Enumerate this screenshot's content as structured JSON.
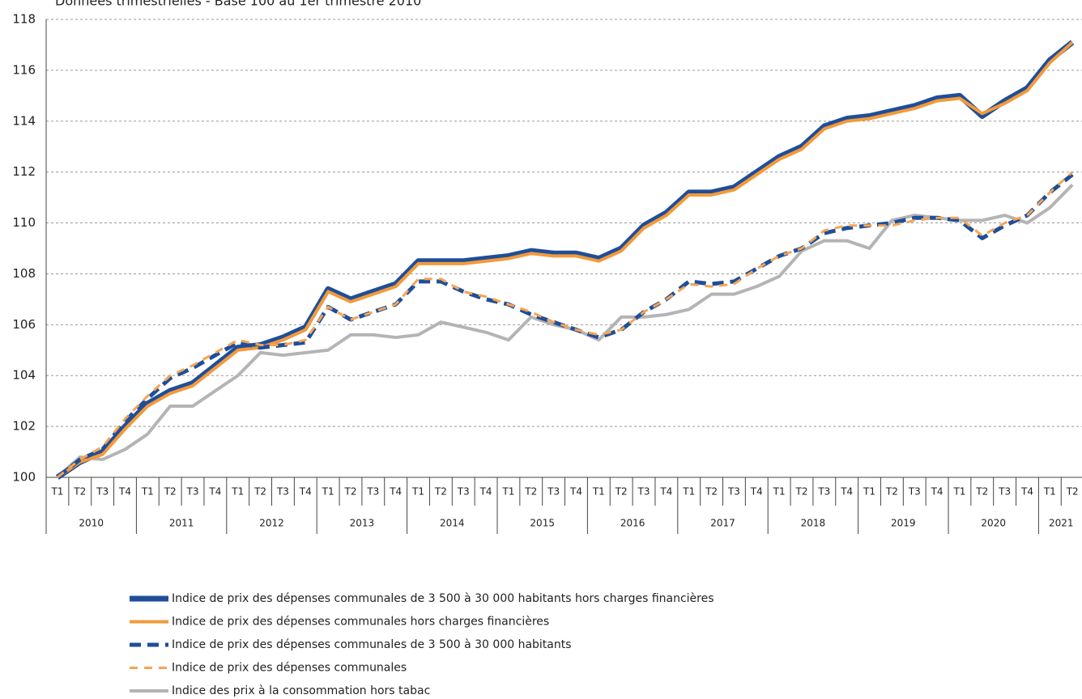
{
  "chart_data": {
    "type": "line",
    "title": "Données trimestrielles - Base 100 au 1er trimestre 2010",
    "categories": [
      "T1",
      "T2",
      "T3",
      "T4",
      "T1",
      "T2",
      "T3",
      "T4",
      "T1",
      "T2",
      "T3",
      "T4",
      "T1",
      "T2",
      "T3",
      "T4",
      "T1",
      "T2",
      "T3",
      "T4",
      "T1",
      "T2",
      "T3",
      "T4",
      "T1",
      "T2",
      "T3",
      "T4",
      "T1",
      "T2",
      "T3",
      "T4",
      "T1",
      "T2",
      "T3",
      "T4",
      "T1",
      "T2",
      "T3",
      "T4",
      "T1",
      "T2",
      "T3",
      "T4",
      "T1",
      "T2"
    ],
    "groups": [
      "2010",
      "2011",
      "2012",
      "2013",
      "2014",
      "2015",
      "2016",
      "2017",
      "2018",
      "2019",
      "2020",
      "2021"
    ],
    "ylim": [
      100,
      118
    ],
    "yticks": [
      100,
      102,
      104,
      106,
      108,
      110,
      112,
      114,
      116,
      118
    ],
    "grid": true,
    "legend": "bottom",
    "series": [
      {
        "name": "Indice de prix des dépenses communales de 3 500 à 30 000 habitants hors charges financières",
        "color": "#1f4e99",
        "style": "solid-thick",
        "values": [
          100.0,
          100.6,
          101.0,
          102.0,
          102.9,
          103.4,
          103.7,
          104.4,
          105.1,
          105.2,
          105.5,
          105.9,
          107.4,
          107.0,
          107.3,
          107.6,
          108.5,
          108.5,
          108.5,
          108.6,
          108.7,
          108.9,
          108.8,
          108.8,
          108.6,
          109.0,
          109.9,
          110.4,
          111.2,
          111.2,
          111.4,
          112.0,
          112.6,
          113.0,
          113.8,
          114.1,
          114.2,
          114.4,
          114.6,
          114.9,
          115.0,
          114.2,
          114.8,
          115.3,
          116.4,
          117.1
        ]
      },
      {
        "name": "Indice de prix des dépenses communales hors charges financières",
        "color": "#f39a3a",
        "style": "solid",
        "values": [
          100.0,
          100.6,
          100.9,
          101.9,
          102.8,
          103.3,
          103.6,
          104.3,
          105.0,
          105.1,
          105.4,
          105.8,
          107.3,
          106.9,
          107.2,
          107.5,
          108.4,
          108.4,
          108.4,
          108.5,
          108.6,
          108.8,
          108.7,
          108.7,
          108.5,
          108.9,
          109.8,
          110.3,
          111.1,
          111.1,
          111.3,
          111.9,
          112.5,
          112.9,
          113.7,
          114.0,
          114.1,
          114.3,
          114.5,
          114.8,
          114.9,
          114.3,
          114.7,
          115.2,
          116.3,
          117.1
        ]
      },
      {
        "name": "Indice de prix des dépenses communales de 3 500 à 30 000 habitants",
        "color": "#1f4e99",
        "style": "dashed-thick",
        "values": [
          100.0,
          100.7,
          101.1,
          102.2,
          103.1,
          103.9,
          104.3,
          104.8,
          105.3,
          105.1,
          105.2,
          105.3,
          106.7,
          106.2,
          106.5,
          106.8,
          107.7,
          107.7,
          107.3,
          107.0,
          106.8,
          106.4,
          106.1,
          105.8,
          105.5,
          105.8,
          106.5,
          107.0,
          107.7,
          107.6,
          107.7,
          108.2,
          108.7,
          109.0,
          109.6,
          109.8,
          109.9,
          110.0,
          110.2,
          110.2,
          110.1,
          109.4,
          109.9,
          110.3,
          111.2,
          111.9
        ]
      },
      {
        "name": "Indice de prix des dépenses communales",
        "color": "#f5a454",
        "style": "dashed",
        "values": [
          100.0,
          100.7,
          101.2,
          102.3,
          103.2,
          104.0,
          104.4,
          104.9,
          105.4,
          105.2,
          105.2,
          105.4,
          106.7,
          106.2,
          106.5,
          106.8,
          107.8,
          107.8,
          107.3,
          107.1,
          106.8,
          106.5,
          106.1,
          105.8,
          105.6,
          105.8,
          106.5,
          107.0,
          107.6,
          107.5,
          107.6,
          108.2,
          108.7,
          109.0,
          109.7,
          109.9,
          109.9,
          109.9,
          110.1,
          110.2,
          110.2,
          109.5,
          110.0,
          110.3,
          111.2,
          112.0
        ]
      },
      {
        "name": "Indice des prix à la consommation hors tabac",
        "color": "#b4b4b4",
        "style": "solid",
        "values": [
          100.0,
          100.8,
          100.7,
          101.1,
          101.7,
          102.8,
          102.8,
          103.4,
          104.0,
          104.9,
          104.8,
          104.9,
          105.0,
          105.6,
          105.6,
          105.5,
          105.6,
          106.1,
          105.9,
          105.7,
          105.4,
          106.3,
          106.0,
          105.8,
          105.4,
          106.3,
          106.3,
          106.4,
          106.6,
          107.2,
          107.2,
          107.5,
          107.9,
          108.9,
          109.3,
          109.3,
          109.0,
          110.1,
          110.3,
          110.2,
          110.1,
          110.1,
          110.3,
          110.0,
          110.6,
          111.5
        ]
      }
    ]
  }
}
